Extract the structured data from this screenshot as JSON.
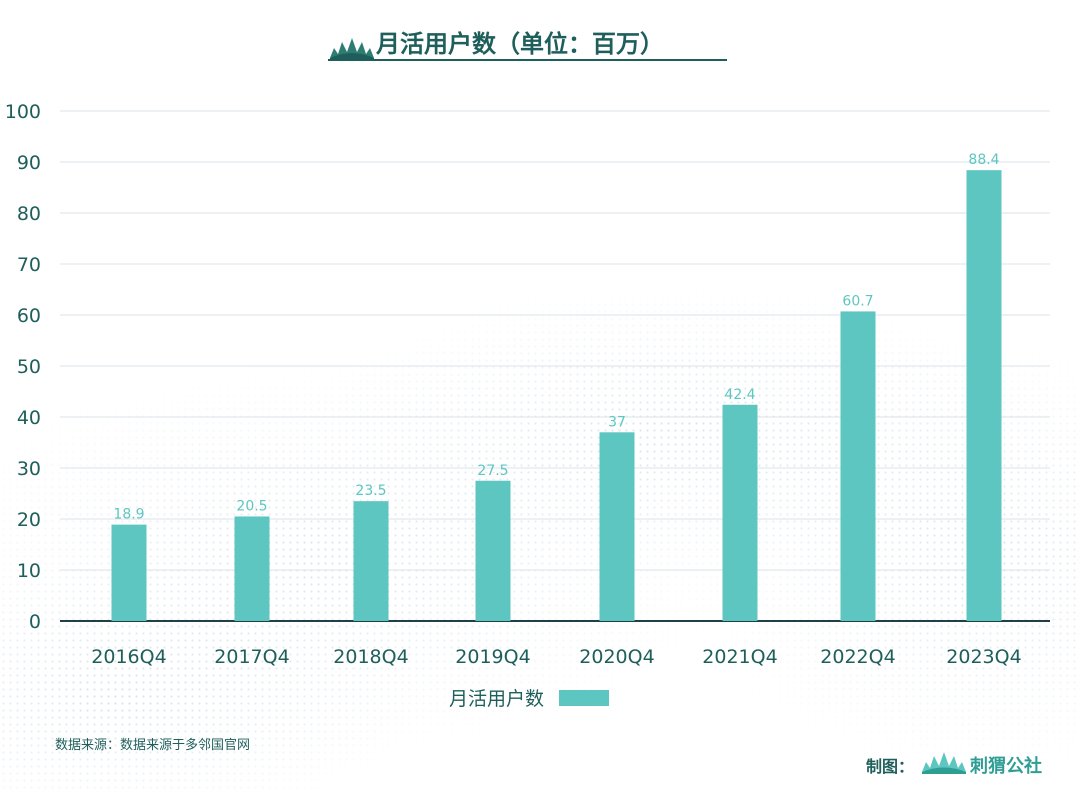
{
  "header": {
    "title": "月活用户数（单位：百万）"
  },
  "chart_data": {
    "type": "bar",
    "title": "月活用户数（单位：百万）",
    "categories": [
      "2016Q4",
      "2017Q4",
      "2018Q4",
      "2019Q4",
      "2020Q4",
      "2021Q4",
      "2022Q4",
      "2023Q4"
    ],
    "series": [
      {
        "name": "月活用户数",
        "values": [
          18.9,
          20.5,
          23.5,
          27.5,
          37,
          42.4,
          60.7,
          88.4
        ]
      }
    ],
    "value_labels": [
      "18.9",
      "20.5",
      "23.5",
      "27.5",
      "37",
      "42.4",
      "60.7",
      "88.4"
    ],
    "ylim": [
      0,
      100
    ],
    "yticks": [
      0,
      10,
      20,
      30,
      40,
      50,
      60,
      70,
      80,
      90,
      100
    ],
    "grid": true,
    "legend_position": "bottom-center",
    "colors": {
      "bar": "#5DC6C1",
      "label": "#5DC6C1",
      "axis_text": "#1F5F5B",
      "grid": "#DCE3E8",
      "brand": "#2E7D73"
    }
  },
  "footer": {
    "source": "数据来源：数据来源于多邻国官网",
    "credit_label": "制图：",
    "brand_name": "刺猬公社"
  }
}
